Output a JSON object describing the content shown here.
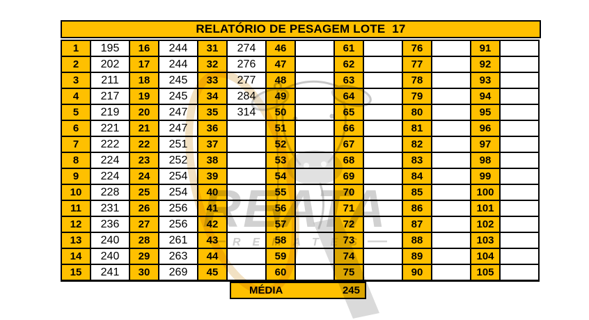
{
  "title": "RELATÓRIO DE PESAGEM LOTE  17",
  "accent_color": "#FFC000",
  "media": {
    "label": "MÉDIA",
    "value": "245"
  },
  "watermark": {
    "brand": "REATA",
    "sub_brand": "REMATES"
  },
  "columns": [
    {
      "numbers": [
        1,
        2,
        3,
        4,
        5,
        6,
        7,
        8,
        9,
        10,
        11,
        12,
        13,
        14,
        15
      ],
      "weights": [
        "195",
        "202",
        "211",
        "217",
        "219",
        "221",
        "222",
        "224",
        "224",
        "228",
        "231",
        "236",
        "240",
        "240",
        "241"
      ]
    },
    {
      "numbers": [
        16,
        17,
        18,
        19,
        20,
        21,
        22,
        23,
        24,
        25,
        26,
        27,
        28,
        29,
        30
      ],
      "weights": [
        "244",
        "244",
        "245",
        "245",
        "247",
        "247",
        "251",
        "252",
        "254",
        "254",
        "256",
        "256",
        "261",
        "263",
        "269"
      ]
    },
    {
      "numbers": [
        31,
        32,
        33,
        34,
        35,
        36,
        37,
        38,
        39,
        40,
        41,
        42,
        43,
        44,
        45
      ],
      "weights": [
        "274",
        "276",
        "277",
        "284",
        "314",
        "",
        "",
        "",
        "",
        "",
        "",
        "",
        "",
        "",
        ""
      ]
    },
    {
      "numbers": [
        46,
        47,
        48,
        49,
        50,
        51,
        52,
        53,
        54,
        55,
        56,
        57,
        58,
        59,
        60
      ],
      "weights": [
        "",
        "",
        "",
        "",
        "",
        "",
        "",
        "",
        "",
        "",
        "",
        "",
        "",
        "",
        ""
      ]
    },
    {
      "numbers": [
        61,
        62,
        63,
        64,
        65,
        66,
        67,
        68,
        69,
        70,
        71,
        72,
        73,
        74,
        75
      ],
      "weights": [
        "",
        "",
        "",
        "",
        "",
        "",
        "",
        "",
        "",
        "",
        "",
        "",
        "",
        "",
        ""
      ]
    },
    {
      "numbers": [
        76,
        77,
        78,
        79,
        80,
        81,
        82,
        83,
        84,
        85,
        86,
        87,
        88,
        89,
        90
      ],
      "weights": [
        "",
        "",
        "",
        "",
        "",
        "",
        "",
        "",
        "",
        "",
        "",
        "",
        "",
        "",
        ""
      ]
    },
    {
      "numbers": [
        91,
        92,
        93,
        94,
        95,
        96,
        97,
        98,
        99,
        100,
        101,
        102,
        103,
        104,
        105
      ],
      "weights": [
        "",
        "",
        "",
        "",
        "",
        "",
        "",
        "",
        "",
        "",
        "",
        "",
        "",
        "",
        ""
      ]
    }
  ]
}
